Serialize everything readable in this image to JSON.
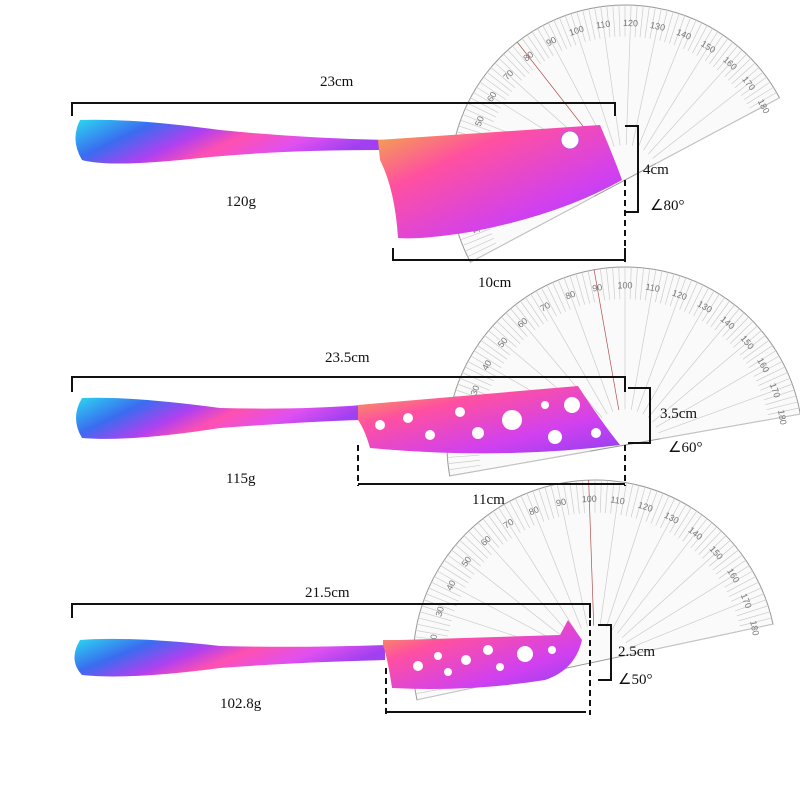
{
  "protractor_scale": [
    "10",
    "20",
    "30",
    "40",
    "50",
    "60",
    "70",
    "80",
    "90",
    "100",
    "110",
    "120",
    "130",
    "140",
    "150",
    "160",
    "170",
    "180"
  ],
  "colors": {
    "line": "#111111",
    "gradient": [
      "#2bd8f0",
      "#3a7cf0",
      "#c040f0",
      "#ff40c0",
      "#f0a040"
    ]
  },
  "knives": [
    {
      "length": "23cm",
      "height": "4cm",
      "angle": "∠80°",
      "weight": "120g",
      "blade": "10cm"
    },
    {
      "length": "23.5cm",
      "height": "3.5cm",
      "angle": "∠60°",
      "weight": "115g",
      "blade": "11cm"
    },
    {
      "length": "21.5cm",
      "height": "2.5cm",
      "angle": "∠50°",
      "weight": "102.8g",
      "blade": ""
    }
  ]
}
